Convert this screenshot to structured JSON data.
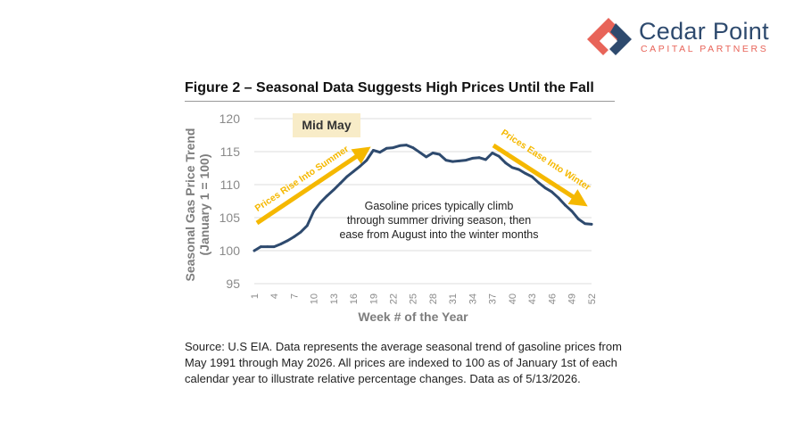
{
  "brand": {
    "name": "Cedar Point",
    "tagline": "CAPITAL PARTNERS",
    "colors": {
      "navy": "#2e4a6e",
      "coral": "#e86459"
    }
  },
  "figure_title": "Figure 2 – Seasonal Data Suggests High Prices Until the Fall",
  "source_note": "Source: U.S EIA. Data represents the average seasonal trend of gasoline prices from May 1991 through May 2026. All prices are indexed to 100 as of January 1st of each calendar year to illustrate relative percentage changes. Data as of 5/13/2026.",
  "chart_data": {
    "type": "line",
    "title": "Figure 2 – Seasonal Data Suggests High Prices Until the Fall",
    "xlabel": "Week # of the Year",
    "ylabel": "Seasonal Gas Price Trend",
    "ylabel_sub": "(January 1 = 100)",
    "ylim": [
      95,
      120
    ],
    "yticks": [
      95,
      100,
      105,
      110,
      115,
      120
    ],
    "xlim": [
      1,
      52
    ],
    "xticks": [
      1,
      4,
      7,
      10,
      13,
      16,
      19,
      22,
      25,
      28,
      31,
      34,
      37,
      40,
      43,
      46,
      49,
      52
    ],
    "grid": "horizontal",
    "line_color": "#2e4a6e",
    "accent_color": "#f5b800",
    "x": [
      1,
      2,
      3,
      4,
      5,
      6,
      7,
      8,
      9,
      10,
      11,
      12,
      13,
      14,
      15,
      16,
      17,
      18,
      19,
      20,
      21,
      22,
      23,
      24,
      25,
      26,
      27,
      28,
      29,
      30,
      31,
      32,
      33,
      34,
      35,
      36,
      37,
      38,
      39,
      40,
      41,
      42,
      43,
      44,
      45,
      46,
      47,
      48,
      49,
      50,
      51,
      52
    ],
    "values": [
      100.0,
      100.6,
      100.6,
      100.6,
      101.0,
      101.5,
      102.1,
      102.8,
      103.8,
      106.0,
      107.3,
      108.3,
      109.2,
      110.2,
      111.2,
      112.0,
      112.8,
      113.7,
      115.2,
      114.9,
      115.5,
      115.6,
      115.9,
      116.0,
      115.6,
      114.9,
      114.2,
      114.8,
      114.6,
      113.7,
      113.5,
      113.6,
      113.7,
      114.0,
      114.1,
      113.8,
      114.8,
      114.3,
      113.3,
      112.6,
      112.3,
      111.7,
      111.2,
      110.3,
      109.5,
      108.9,
      108.0,
      106.9,
      106.0,
      104.8,
      104.1,
      104.0
    ],
    "annotations": {
      "callout": "Mid May",
      "description": [
        "Gasoline prices typically climb",
        "through  summer driving season, then",
        "ease from August into the winter months"
      ],
      "arrow_up_label": "Prices Rise Into Summer",
      "arrow_down_label": "Prices Ease Into Winter"
    }
  }
}
